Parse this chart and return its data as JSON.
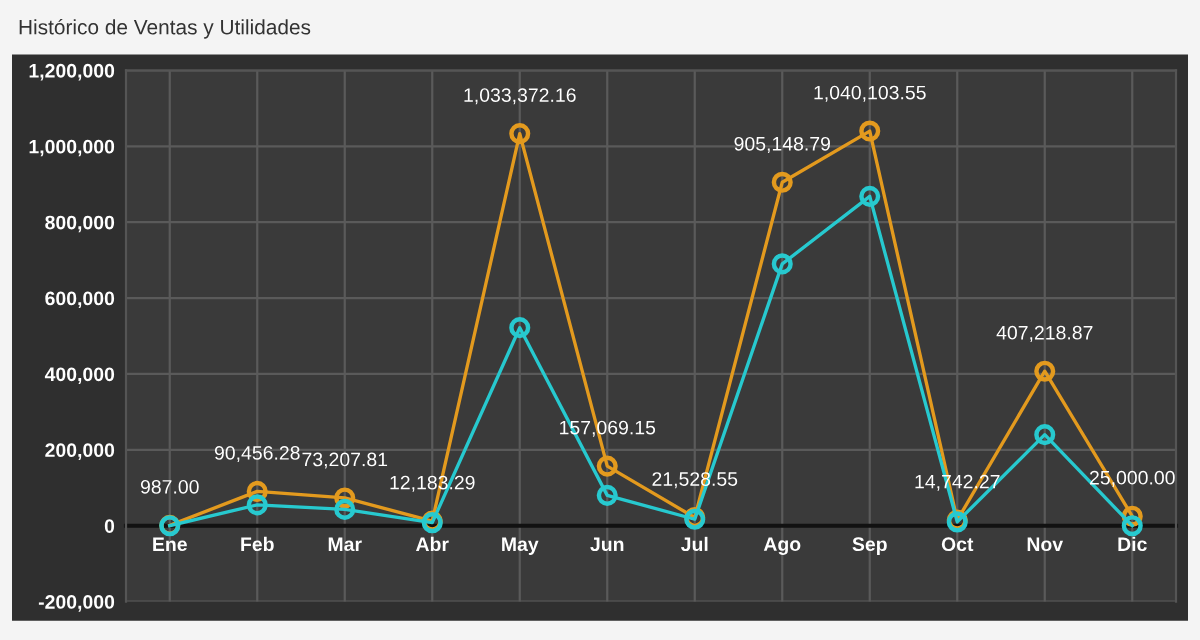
{
  "chart_data": {
    "type": "line",
    "title": "Histórico de Ventas y Utilidades",
    "categories": [
      "Ene",
      "Feb",
      "Mar",
      "Abr",
      "May",
      "Jun",
      "Jul",
      "Ago",
      "Sep",
      "Oct",
      "Nov",
      "Dic"
    ],
    "series": [
      {
        "color": "#e39a1e",
        "values": [
          987.0,
          90456.28,
          73207.81,
          12183.29,
          1033372.16,
          157069.15,
          21528.55,
          905148.79,
          1040103.55,
          14742.27,
          407218.87,
          25000.0
        ],
        "value_labels": [
          "987.00",
          "90,456.28",
          "73,207.81",
          "12,183.29",
          "1,033,372.16",
          "157,069.15",
          "21,528.55",
          "905,148.79",
          "1,040,103.55",
          "14,742.27",
          "407,218.87",
          "25,000.00"
        ]
      },
      {
        "color": "#27c9cf",
        "values": [
          0,
          55000,
          43000,
          8000,
          522000,
          80000,
          17000,
          690000,
          868000,
          10000,
          240000,
          0
        ]
      }
    ],
    "ylim": [
      -200000,
      1200000
    ],
    "yticks": [
      {
        "value": -200000,
        "label": "-200,000"
      },
      {
        "value": 0,
        "label": "0"
      },
      {
        "value": 200000,
        "label": "200,000"
      },
      {
        "value": 400000,
        "label": "400,000"
      },
      {
        "value": 600000,
        "label": "600,000"
      },
      {
        "value": 800000,
        "label": "800,000"
      },
      {
        "value": 1000000,
        "label": "1,000,000"
      },
      {
        "value": 1200000,
        "label": "1,200,000"
      }
    ],
    "grid": true,
    "marker": "circle",
    "line_style": "solid"
  }
}
